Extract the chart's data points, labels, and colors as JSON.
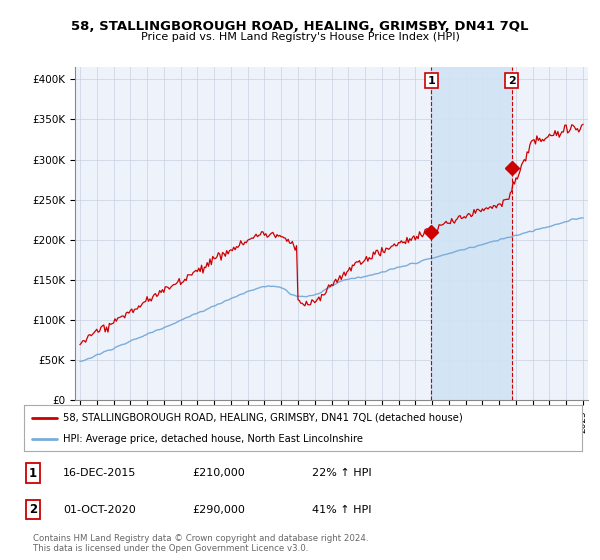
{
  "title_line1": "58, STALLINGBOROUGH ROAD, HEALING, GRIMSBY, DN41 7QL",
  "title_line2": "Price paid vs. HM Land Registry's House Price Index (HPI)",
  "ylabel_ticks": [
    "£0",
    "£50K",
    "£100K",
    "£150K",
    "£200K",
    "£250K",
    "£300K",
    "£350K",
    "£400K"
  ],
  "ytick_values": [
    0,
    50000,
    100000,
    150000,
    200000,
    250000,
    300000,
    350000,
    400000
  ],
  "ylim": [
    0,
    415000
  ],
  "xlim_start": 1994.7,
  "xlim_end": 2025.3,
  "marker1_x": 2015.96,
  "marker1_y": 210000,
  "marker1_label": "1",
  "marker2_x": 2020.75,
  "marker2_y": 290000,
  "marker2_label": "2",
  "red_line_color": "#cc0000",
  "blue_line_color": "#7aaddb",
  "shade_color": "#d0e4f5",
  "legend_red_label": "58, STALLINGBOROUGH ROAD, HEALING, GRIMSBY, DN41 7QL (detached house)",
  "legend_blue_label": "HPI: Average price, detached house, North East Lincolnshire",
  "annotation1_date": "16-DEC-2015",
  "annotation1_price": "£210,000",
  "annotation1_hpi": "22% ↑ HPI",
  "annotation2_date": "01-OCT-2020",
  "annotation2_price": "£290,000",
  "annotation2_hpi": "41% ↑ HPI",
  "footer_line1": "Contains HM Land Registry data © Crown copyright and database right 2024.",
  "footer_line2": "This data is licensed under the Open Government Licence v3.0.",
  "bg_color": "#ffffff",
  "plot_bg_color": "#eef2fb",
  "grid_color": "#c8d0e0"
}
